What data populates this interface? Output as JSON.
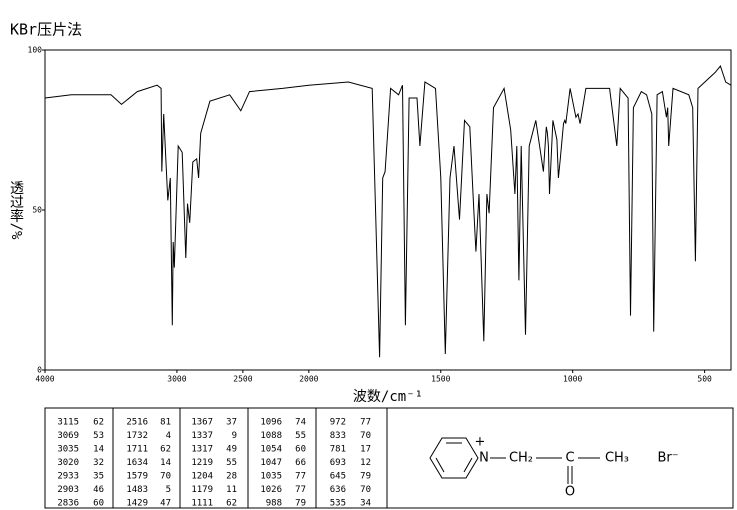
{
  "chart_data": {
    "type": "line",
    "title": "KBr压片法",
    "xlabel": "波数/cm⁻¹",
    "ylabel": "透过率/%",
    "xlim": [
      4000,
      400
    ],
    "ylim": [
      0,
      100
    ],
    "xticks": [
      4000,
      3000,
      2500,
      2000,
      1500,
      1000,
      500
    ],
    "yticks": [
      0,
      50,
      100
    ],
    "x_scale_change": 2000,
    "color": "#000000",
    "x": [
      4000,
      3800,
      3500,
      3420,
      3300,
      3150,
      3120,
      3115,
      3100,
      3069,
      3050,
      3035,
      3028,
      3020,
      2990,
      2960,
      2933,
      2920,
      2903,
      2880,
      2850,
      2836,
      2820,
      2750,
      2600,
      2516,
      2450,
      2200,
      2000,
      1850,
      1760,
      1732,
      1720,
      1711,
      1690,
      1660,
      1645,
      1634,
      1620,
      1590,
      1579,
      1560,
      1520,
      1500,
      1483,
      1465,
      1450,
      1429,
      1410,
      1390,
      1375,
      1367,
      1355,
      1337,
      1325,
      1317,
      1300,
      1260,
      1235,
      1219,
      1212,
      1204,
      1195,
      1179,
      1165,
      1140,
      1111,
      1100,
      1096,
      1092,
      1088,
      1075,
      1060,
      1054,
      1047,
      1035,
      1030,
      1026,
      1010,
      988,
      980,
      972,
      950,
      860,
      833,
      820,
      790,
      781,
      770,
      740,
      720,
      700,
      693,
      680,
      660,
      645,
      640,
      636,
      620,
      560,
      545,
      535,
      525,
      460,
      440,
      420,
      400
    ],
    "values": [
      85,
      86,
      86,
      83,
      87,
      89,
      88,
      62,
      80,
      53,
      60,
      14,
      40,
      32,
      70,
      68,
      35,
      52,
      46,
      65,
      66,
      60,
      74,
      84,
      86,
      81,
      87,
      88,
      89,
      90,
      88,
      4,
      60,
      62,
      88,
      86,
      89,
      14,
      85,
      85,
      70,
      90,
      88,
      60,
      5,
      60,
      70,
      47,
      78,
      76,
      50,
      37,
      55,
      9,
      55,
      49,
      82,
      88,
      75,
      55,
      70,
      28,
      70,
      11,
      70,
      78,
      62,
      76,
      74,
      70,
      55,
      78,
      72,
      60,
      66,
      77,
      78,
      77,
      88,
      79,
      80,
      77,
      88,
      88,
      70,
      88,
      85,
      17,
      82,
      87,
      86,
      80,
      12,
      86,
      87,
      79,
      82,
      70,
      88,
      86,
      82,
      34,
      88,
      93,
      95,
      90,
      89
    ]
  },
  "peak_table": {
    "columns": [
      [
        [
          "3115",
          "62"
        ],
        [
          "3069",
          "53"
        ],
        [
          "3035",
          "14"
        ],
        [
          "3020",
          "32"
        ],
        [
          "2933",
          "35"
        ],
        [
          "2903",
          "46"
        ],
        [
          "2836",
          "60"
        ]
      ],
      [
        [
          "2516",
          "81"
        ],
        [
          "1732",
          "4"
        ],
        [
          "1711",
          "62"
        ],
        [
          "1634",
          "14"
        ],
        [
          "1579",
          "70"
        ],
        [
          "1483",
          "5"
        ],
        [
          "1429",
          "47"
        ]
      ],
      [
        [
          "1367",
          "37"
        ],
        [
          "1337",
          "9"
        ],
        [
          "1317",
          "49"
        ],
        [
          "1219",
          "55"
        ],
        [
          "1204",
          "28"
        ],
        [
          "1179",
          "11"
        ],
        [
          "1111",
          "62"
        ]
      ],
      [
        [
          "1096",
          "74"
        ],
        [
          "1088",
          "55"
        ],
        [
          "1054",
          "60"
        ],
        [
          "1047",
          "66"
        ],
        [
          "1035",
          "77"
        ],
        [
          "1026",
          "77"
        ],
        [
          "988",
          "79"
        ]
      ],
      [
        [
          "972",
          "77"
        ],
        [
          "833",
          "70"
        ],
        [
          "781",
          "17"
        ],
        [
          "693",
          "12"
        ],
        [
          "645",
          "79"
        ],
        [
          "636",
          "70"
        ],
        [
          "535",
          "34"
        ]
      ]
    ]
  },
  "structure": {
    "n": "N",
    "charge": "+",
    "ch2": "CH₂",
    "c": "C",
    "ch3": "CH₃",
    "o": "O",
    "anion": "Br⁻"
  }
}
